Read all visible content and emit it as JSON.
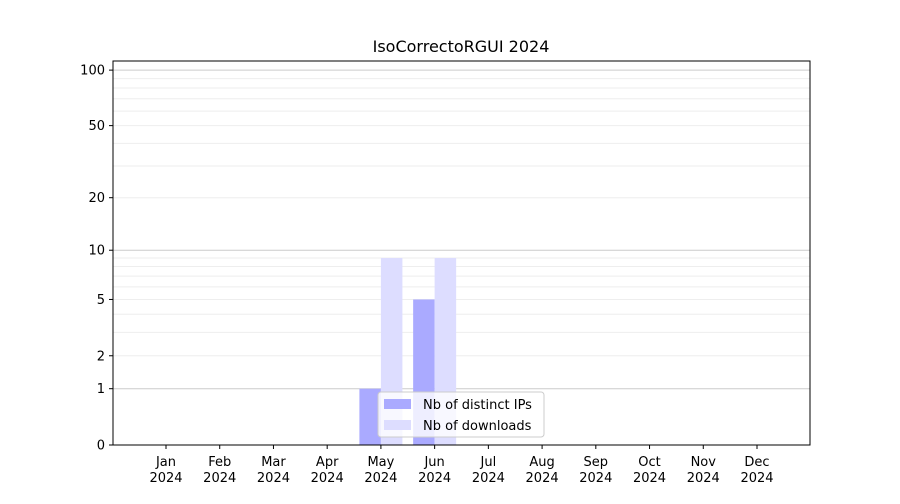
{
  "chart_data": {
    "type": "bar",
    "title": "IsoCorrectoRGUI 2024",
    "xlabel": "",
    "ylabel": "",
    "y_scale": "log(1+y)",
    "ylim": [
      0,
      112
    ],
    "yticks": [
      0,
      1,
      2,
      5,
      10,
      20,
      50,
      100
    ],
    "ytick_labels": [
      "0",
      "1",
      "2",
      "5",
      "10",
      "20",
      "50",
      "100"
    ],
    "grid": true,
    "legend_placement": "bottom-center",
    "categories": [
      "Jan\n2024",
      "Feb\n2024",
      "Mar\n2024",
      "Apr\n2024",
      "May\n2024",
      "Jun\n2024",
      "Jul\n2024",
      "Aug\n2024",
      "Sep\n2024",
      "Oct\n2024",
      "Nov\n2024",
      "Dec\n2024"
    ],
    "category_lines": [
      [
        "Jan",
        "2024"
      ],
      [
        "Feb",
        "2024"
      ],
      [
        "Mar",
        "2024"
      ],
      [
        "Apr",
        "2024"
      ],
      [
        "May",
        "2024"
      ],
      [
        "Jun",
        "2024"
      ],
      [
        "Jul",
        "2024"
      ],
      [
        "Aug",
        "2024"
      ],
      [
        "Sep",
        "2024"
      ],
      [
        "Oct",
        "2024"
      ],
      [
        "Nov",
        "2024"
      ],
      [
        "Dec",
        "2024"
      ]
    ],
    "series": [
      {
        "name": "Nb of distinct IPs",
        "color": "#aaaaff",
        "values": [
          0,
          0,
          0,
          0,
          1,
          5,
          0,
          0,
          0,
          0,
          0,
          0
        ]
      },
      {
        "name": "Nb of downloads",
        "color": "#ddddff",
        "values": [
          0,
          0,
          0,
          0,
          9,
          9,
          0,
          0,
          0,
          0,
          0,
          0
        ]
      }
    ]
  }
}
